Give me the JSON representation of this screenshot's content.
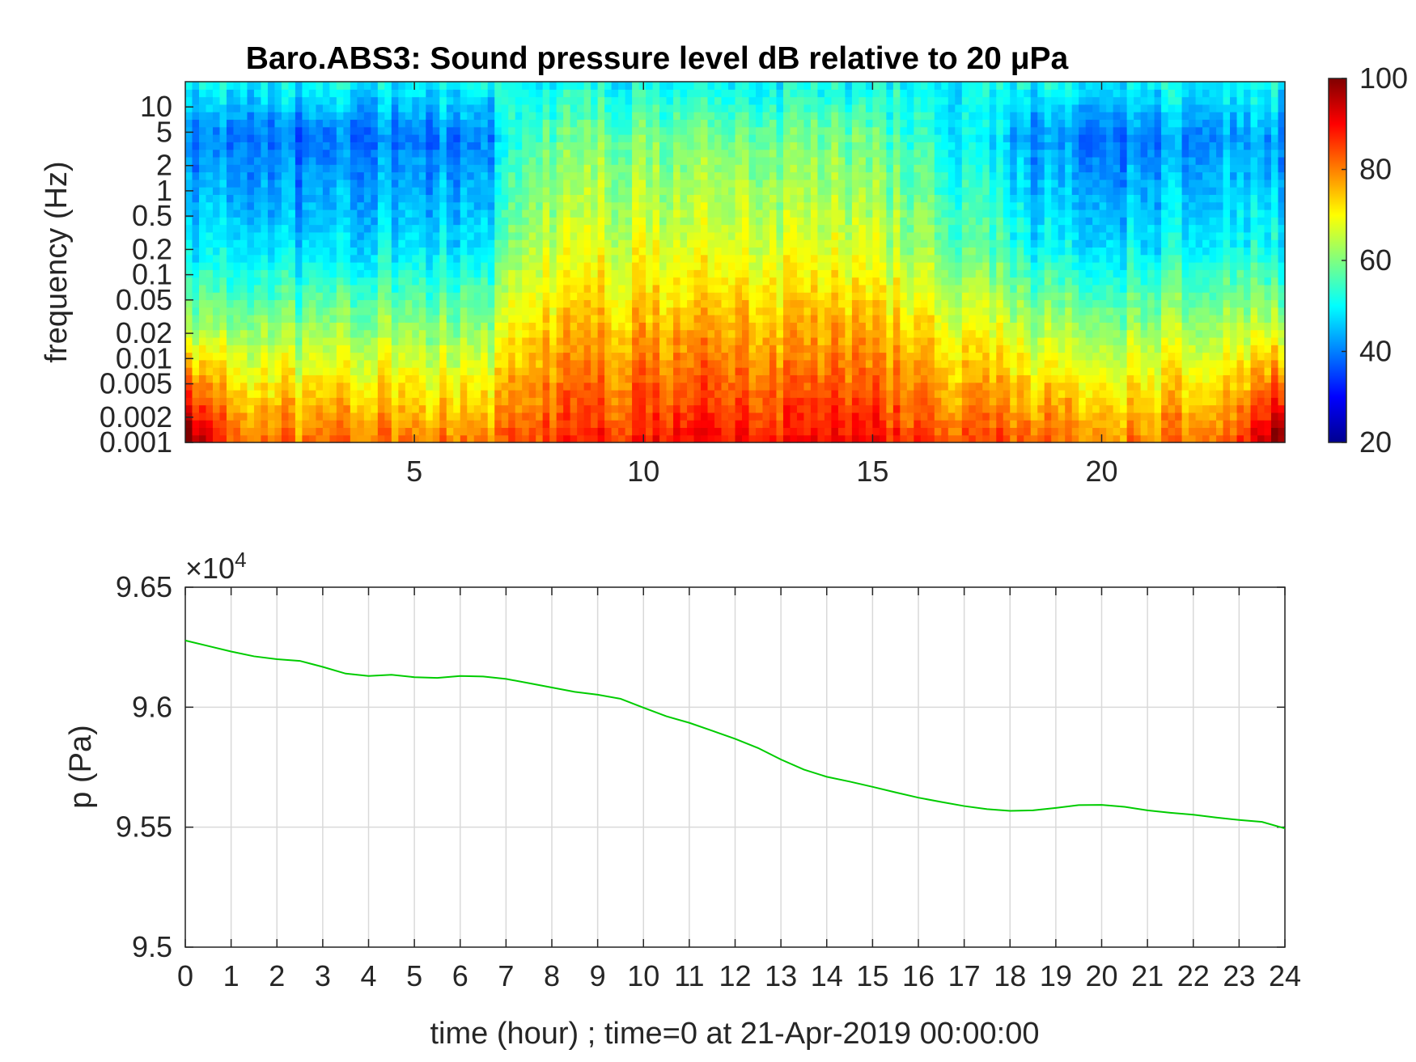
{
  "figure": {
    "title": "Baro.ABS3: Sound pressure level dB relative to 20 μPa"
  },
  "chart_data": [
    {
      "type": "heatmap",
      "title": "Baro.ABS3: Sound pressure level dB relative to 20 μPa",
      "xlabel": "",
      "ylabel": "frequency (Hz)",
      "xlim": [
        0,
        24
      ],
      "xticks": [
        5,
        10,
        15,
        20
      ],
      "xtick_labels": [
        "5",
        "10",
        "15",
        "20"
      ],
      "yscale": "log",
      "ylim": [
        0.001,
        20
      ],
      "yticks": [
        0.001,
        0.002,
        0.005,
        0.01,
        0.02,
        0.05,
        0.1,
        0.2,
        0.5,
        1,
        2,
        5,
        10
      ],
      "ytick_labels": [
        "0.001",
        "0.002",
        "0.005",
        "0.01",
        "0.02",
        "0.05",
        "0.1",
        "0.2",
        "0.5",
        "1",
        "2",
        "5",
        "10"
      ],
      "colormap": "jet",
      "clim": [
        20,
        100
      ],
      "colorbar_ticks": [
        20,
        40,
        60,
        80,
        100
      ],
      "colorbar_tick_labels": [
        "20",
        "40",
        "60",
        "80",
        "100"
      ],
      "grid": false,
      "activity_by_hour": {
        "hours": [
          0.5,
          1.5,
          2.5,
          3.5,
          4.5,
          5.5,
          6.5,
          7.5,
          8.5,
          9.5,
          10.5,
          11.5,
          12.5,
          13.5,
          14.5,
          15.5,
          16.5,
          17.5,
          18.5,
          19.5,
          20.5,
          21.5,
          22.5,
          23.5
        ],
        "low_freq_level_db": [
          82,
          82,
          81,
          82,
          83,
          80,
          79,
          84,
          86,
          87,
          88,
          90,
          89,
          88,
          90,
          87,
          85,
          84,
          82,
          81,
          80,
          81,
          82,
          83
        ],
        "band_1hz_level_db": [
          44,
          44,
          42,
          43,
          45,
          44,
          43,
          60,
          62,
          63,
          62,
          63,
          64,
          62,
          63,
          60,
          56,
          52,
          45,
          44,
          44,
          45,
          46,
          46
        ]
      }
    },
    {
      "type": "line",
      "title": "",
      "xlabel": "time (hour) ; time=0 at 21-Apr-2019 00:00:00",
      "ylabel": "p (Pa)",
      "exponent_label": "×10",
      "exponent_power": "4",
      "xlim": [
        0,
        24
      ],
      "ylim": [
        95000,
        96500
      ],
      "xticks": [
        0,
        1,
        2,
        3,
        4,
        5,
        6,
        7,
        8,
        9,
        10,
        11,
        12,
        13,
        14,
        15,
        16,
        17,
        18,
        19,
        20,
        21,
        22,
        23,
        24
      ],
      "xtick_labels": [
        "0",
        "1",
        "2",
        "3",
        "4",
        "5",
        "6",
        "7",
        "8",
        "9",
        "10",
        "11",
        "12",
        "13",
        "14",
        "15",
        "16",
        "17",
        "18",
        "19",
        "20",
        "21",
        "22",
        "23",
        "24"
      ],
      "yticks": [
        95000,
        95500,
        96000,
        96500
      ],
      "ytick_labels": [
        "9.5",
        "9.55",
        "9.6",
        "9.65"
      ],
      "grid": true,
      "series": [
        {
          "color": "#00cc00",
          "x": [
            0,
            0.5,
            1,
            1.5,
            2,
            2.5,
            3,
            3.5,
            4,
            4.5,
            5,
            5.5,
            6,
            6.5,
            7,
            7.5,
            8,
            8.5,
            9,
            9.5,
            10,
            10.5,
            11,
            11.5,
            12,
            12.5,
            13,
            13.5,
            14,
            14.5,
            15,
            15.5,
            16,
            16.5,
            17,
            17.5,
            18,
            18.5,
            19,
            19.5,
            20,
            20.5,
            21,
            21.5,
            22,
            22.5,
            23,
            23.5,
            24
          ],
          "y": [
            96278,
            96255,
            96232,
            96212,
            96200,
            96193,
            96168,
            96140,
            96130,
            96135,
            96125,
            96122,
            96130,
            96128,
            96118,
            96100,
            96082,
            96064,
            96052,
            96035,
            95998,
            95962,
            95935,
            95902,
            95868,
            95830,
            95782,
            95740,
            95710,
            95690,
            95668,
            95645,
            95623,
            95605,
            95588,
            95575,
            95568,
            95570,
            95580,
            95592,
            95593,
            95585,
            95570,
            95560,
            95552,
            95540,
            95530,
            95522,
            95495
          ]
        }
      ]
    }
  ]
}
